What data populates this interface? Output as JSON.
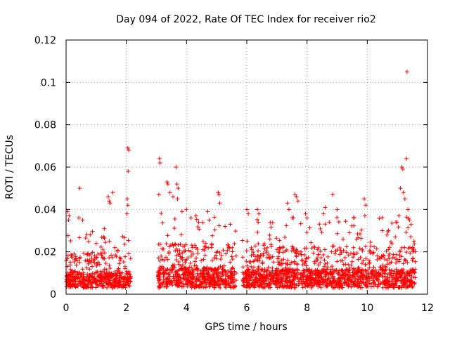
{
  "chart_data": {
    "type": "scatter",
    "title": "Day 094 of 2022, Rate Of TEC Index for receiver rio2",
    "xlabel": "GPS time / hours",
    "ylabel": "ROTI / TECUs",
    "xlim": [
      0,
      12
    ],
    "ylim": [
      0,
      0.12
    ],
    "xticks": [
      0,
      2,
      4,
      6,
      8,
      10,
      12
    ],
    "xtick_labels": [
      "0",
      "2",
      "4",
      "6",
      "8",
      "10",
      "12"
    ],
    "yticks": [
      0,
      0.02,
      0.04,
      0.06,
      0.08,
      0.1,
      0.12
    ],
    "ytick_labels": [
      "0",
      "0.02",
      "0.04",
      "0.06",
      "0.08",
      "0.1",
      "0.12"
    ],
    "grid": true,
    "marker": "+",
    "marker_color": "#ff0000",
    "segments": [
      {
        "x_range": [
          0.0,
          2.15
        ],
        "y_base": 0.003,
        "y_typical": 0.012
      },
      {
        "x_range": [
          3.05,
          5.65
        ],
        "y_base": 0.003,
        "y_typical": 0.015
      },
      {
        "x_range": [
          5.85,
          11.6
        ],
        "y_base": 0.003,
        "y_typical": 0.014
      }
    ],
    "notable_points": [
      {
        "x": 0.05,
        "y": 0.039
      },
      {
        "x": 0.1,
        "y": 0.037
      },
      {
        "x": 0.08,
        "y": 0.035
      },
      {
        "x": 0.45,
        "y": 0.05
      },
      {
        "x": 0.42,
        "y": 0.036
      },
      {
        "x": 0.55,
        "y": 0.035
      },
      {
        "x": 0.8,
        "y": 0.028
      },
      {
        "x": 1.0,
        "y": 0.024
      },
      {
        "x": 1.25,
        "y": 0.027
      },
      {
        "x": 1.4,
        "y": 0.046
      },
      {
        "x": 1.43,
        "y": 0.044
      },
      {
        "x": 1.46,
        "y": 0.043
      },
      {
        "x": 1.55,
        "y": 0.048
      },
      {
        "x": 1.62,
        "y": 0.022
      },
      {
        "x": 2.05,
        "y": 0.069
      },
      {
        "x": 2.08,
        "y": 0.068
      },
      {
        "x": 2.06,
        "y": 0.058
      },
      {
        "x": 2.03,
        "y": 0.045
      },
      {
        "x": 2.05,
        "y": 0.042
      },
      {
        "x": 2.02,
        "y": 0.038
      },
      {
        "x": 3.1,
        "y": 0.064
      },
      {
        "x": 3.12,
        "y": 0.062
      },
      {
        "x": 3.08,
        "y": 0.047
      },
      {
        "x": 3.35,
        "y": 0.053
      },
      {
        "x": 3.38,
        "y": 0.052
      },
      {
        "x": 3.45,
        "y": 0.048
      },
      {
        "x": 3.55,
        "y": 0.046
      },
      {
        "x": 3.65,
        "y": 0.06
      },
      {
        "x": 3.68,
        "y": 0.052
      },
      {
        "x": 3.72,
        "y": 0.05
      },
      {
        "x": 3.7,
        "y": 0.045
      },
      {
        "x": 3.85,
        "y": 0.039
      },
      {
        "x": 4.0,
        "y": 0.04
      },
      {
        "x": 4.15,
        "y": 0.036
      },
      {
        "x": 4.4,
        "y": 0.034
      },
      {
        "x": 4.7,
        "y": 0.039
      },
      {
        "x": 4.75,
        "y": 0.035
      },
      {
        "x": 5.05,
        "y": 0.048
      },
      {
        "x": 5.08,
        "y": 0.047
      },
      {
        "x": 5.1,
        "y": 0.043
      },
      {
        "x": 5.45,
        "y": 0.033
      },
      {
        "x": 6.0,
        "y": 0.04
      },
      {
        "x": 6.05,
        "y": 0.038
      },
      {
        "x": 6.35,
        "y": 0.04
      },
      {
        "x": 6.4,
        "y": 0.038
      },
      {
        "x": 7.35,
        "y": 0.043
      },
      {
        "x": 7.4,
        "y": 0.04
      },
      {
        "x": 7.6,
        "y": 0.047
      },
      {
        "x": 7.65,
        "y": 0.046
      },
      {
        "x": 7.7,
        "y": 0.044
      },
      {
        "x": 7.95,
        "y": 0.038
      },
      {
        "x": 8.0,
        "y": 0.036
      },
      {
        "x": 8.55,
        "y": 0.038
      },
      {
        "x": 8.6,
        "y": 0.041
      },
      {
        "x": 8.85,
        "y": 0.047
      },
      {
        "x": 9.0,
        "y": 0.04
      },
      {
        "x": 9.55,
        "y": 0.036
      },
      {
        "x": 9.9,
        "y": 0.045
      },
      {
        "x": 9.95,
        "y": 0.042
      },
      {
        "x": 9.92,
        "y": 0.037
      },
      {
        "x": 10.5,
        "y": 0.03
      },
      {
        "x": 11.05,
        "y": 0.037
      },
      {
        "x": 11.1,
        "y": 0.05
      },
      {
        "x": 11.15,
        "y": 0.06
      },
      {
        "x": 11.18,
        "y": 0.059
      },
      {
        "x": 11.2,
        "y": 0.048
      },
      {
        "x": 11.25,
        "y": 0.045
      },
      {
        "x": 11.3,
        "y": 0.064
      },
      {
        "x": 11.32,
        "y": 0.105
      },
      {
        "x": 11.35,
        "y": 0.04
      },
      {
        "x": 11.4,
        "y": 0.035
      },
      {
        "x": 11.55,
        "y": 0.025
      }
    ]
  }
}
